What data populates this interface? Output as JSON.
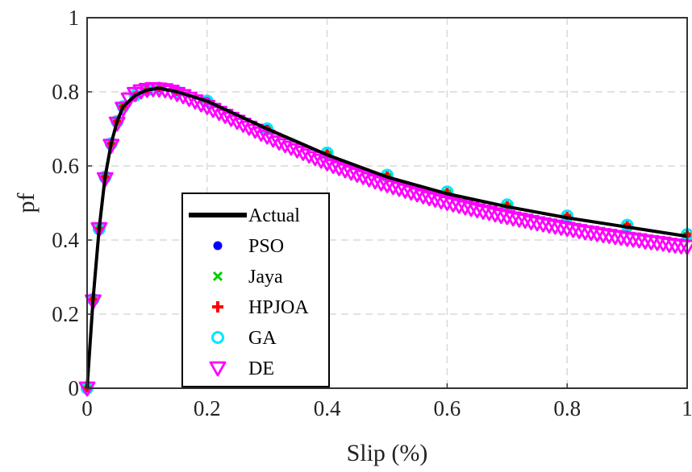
{
  "chart_data": {
    "type": "line",
    "title": "",
    "xlabel": "Slip (%)",
    "ylabel": "pf",
    "xlim": [
      0,
      1
    ],
    "ylim": [
      0,
      1
    ],
    "x_ticks": [
      "0",
      "0.2",
      "0.4",
      "0.6",
      "0.8",
      "1"
    ],
    "y_ticks": [
      "0",
      "0.2",
      "0.4",
      "0.6",
      "0.8",
      "1"
    ],
    "grid": true,
    "legend_position": "bottom-left",
    "series": [
      {
        "name": "Actual",
        "marker": "line",
        "color": "#000000",
        "x": [
          0,
          0.01,
          0.02,
          0.03,
          0.04,
          0.05,
          0.06,
          0.08,
          0.1,
          0.12,
          0.15,
          0.2,
          0.3,
          0.4,
          0.5,
          0.6,
          0.7,
          0.8,
          0.9,
          1.0
        ],
        "y": [
          0,
          0.24,
          0.43,
          0.57,
          0.66,
          0.72,
          0.76,
          0.79,
          0.805,
          0.81,
          0.8,
          0.775,
          0.7,
          0.63,
          0.57,
          0.525,
          0.49,
          0.46,
          0.435,
          0.41
        ]
      },
      {
        "name": "PSO",
        "marker": "dot",
        "color": "#0000ff",
        "x": [
          0,
          0.01,
          0.02,
          0.03,
          0.04,
          0.05,
          0.06,
          0.08,
          0.1,
          0.12,
          0.15,
          0.2,
          0.3,
          0.4,
          0.5,
          0.6,
          0.7,
          0.8,
          0.9,
          1.0
        ],
        "y": [
          0,
          0.24,
          0.43,
          0.57,
          0.66,
          0.72,
          0.76,
          0.79,
          0.805,
          0.81,
          0.8,
          0.775,
          0.7,
          0.63,
          0.57,
          0.525,
          0.49,
          0.46,
          0.435,
          0.41
        ]
      },
      {
        "name": "Jaya",
        "marker": "x",
        "color": "#00cc00",
        "x": [
          0,
          0.01,
          0.02,
          0.03,
          0.04,
          0.05,
          0.06,
          0.08,
          0.1,
          0.12,
          0.15,
          0.2,
          0.3,
          0.4,
          0.5,
          0.6,
          0.7,
          0.8,
          0.9,
          1.0
        ],
        "y": [
          0,
          0.24,
          0.43,
          0.57,
          0.66,
          0.72,
          0.76,
          0.79,
          0.805,
          0.81,
          0.8,
          0.775,
          0.7,
          0.63,
          0.57,
          0.525,
          0.49,
          0.46,
          0.435,
          0.41
        ]
      },
      {
        "name": "HPJOA",
        "marker": "plus",
        "color": "#ff0000",
        "x": [
          0,
          0.01,
          0.02,
          0.03,
          0.04,
          0.05,
          0.06,
          0.08,
          0.1,
          0.12,
          0.15,
          0.2,
          0.3,
          0.4,
          0.5,
          0.6,
          0.7,
          0.8,
          0.9,
          1.0
        ],
        "y": [
          0,
          0.24,
          0.43,
          0.57,
          0.66,
          0.72,
          0.76,
          0.79,
          0.805,
          0.81,
          0.8,
          0.775,
          0.7,
          0.63,
          0.57,
          0.525,
          0.49,
          0.465,
          0.44,
          0.415
        ]
      },
      {
        "name": "GA",
        "marker": "circle",
        "color": "#00e5ff",
        "x": [
          0,
          0.01,
          0.02,
          0.03,
          0.04,
          0.05,
          0.06,
          0.08,
          0.1,
          0.12,
          0.15,
          0.2,
          0.3,
          0.4,
          0.5,
          0.6,
          0.7,
          0.8,
          0.9,
          1.0
        ],
        "y": [
          0,
          0.24,
          0.43,
          0.57,
          0.66,
          0.72,
          0.76,
          0.79,
          0.805,
          0.81,
          0.8,
          0.775,
          0.7,
          0.635,
          0.575,
          0.53,
          0.495,
          0.465,
          0.44,
          0.415
        ]
      },
      {
        "name": "DE",
        "marker": "triangle-down",
        "color": "#ff00ff",
        "x": [
          0,
          0.01,
          0.02,
          0.03,
          0.04,
          0.05,
          0.06,
          0.07,
          0.08,
          0.09,
          0.1,
          0.11,
          0.12,
          0.13,
          0.14,
          0.15,
          0.16,
          0.17,
          0.18,
          0.19,
          0.2,
          0.21,
          0.22,
          0.23,
          0.24,
          0.25,
          0.26,
          0.27,
          0.28,
          0.29,
          0.3,
          0.31,
          0.32,
          0.33,
          0.34,
          0.35,
          0.36,
          0.37,
          0.38,
          0.39,
          0.4,
          0.41,
          0.42,
          0.43,
          0.44,
          0.45,
          0.46,
          0.47,
          0.48,
          0.49,
          0.5,
          0.51,
          0.52,
          0.53,
          0.54,
          0.55,
          0.56,
          0.57,
          0.58,
          0.59,
          0.6,
          0.61,
          0.62,
          0.63,
          0.64,
          0.65,
          0.66,
          0.67,
          0.68,
          0.69,
          0.7,
          0.71,
          0.72,
          0.73,
          0.74,
          0.75,
          0.76,
          0.77,
          0.78,
          0.79,
          0.8,
          0.81,
          0.82,
          0.83,
          0.84,
          0.85,
          0.86,
          0.87,
          0.88,
          0.89,
          0.9,
          0.91,
          0.92,
          0.93,
          0.94,
          0.95,
          0.96,
          0.97,
          0.98,
          0.99,
          1.0
        ],
        "y": [
          0,
          0.235,
          0.43,
          0.565,
          0.655,
          0.715,
          0.755,
          0.78,
          0.795,
          0.802,
          0.806,
          0.808,
          0.807,
          0.805,
          0.801,
          0.795,
          0.789,
          0.782,
          0.775,
          0.767,
          0.76,
          0.752,
          0.744,
          0.736,
          0.728,
          0.72,
          0.712,
          0.704,
          0.696,
          0.688,
          0.68,
          0.672,
          0.664,
          0.657,
          0.65,
          0.643,
          0.636,
          0.629,
          0.622,
          0.615,
          0.608,
          0.601,
          0.595,
          0.589,
          0.583,
          0.577,
          0.571,
          0.565,
          0.559,
          0.554,
          0.549,
          0.544,
          0.539,
          0.534,
          0.529,
          0.524,
          0.519,
          0.514,
          0.51,
          0.505,
          0.501,
          0.497,
          0.493,
          0.489,
          0.485,
          0.481,
          0.477,
          0.474,
          0.47,
          0.466,
          0.463,
          0.459,
          0.456,
          0.453,
          0.449,
          0.446,
          0.443,
          0.44,
          0.437,
          0.434,
          0.431,
          0.428,
          0.425,
          0.422,
          0.42,
          0.417,
          0.414,
          0.412,
          0.409,
          0.407,
          0.404,
          0.402,
          0.4,
          0.397,
          0.395,
          0.393,
          0.391,
          0.388,
          0.386,
          0.384,
          0.382
        ]
      }
    ]
  }
}
